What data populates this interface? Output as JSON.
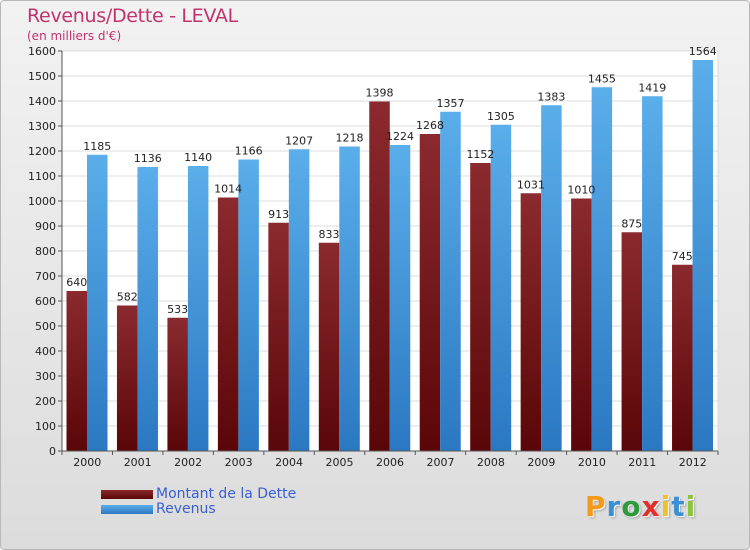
{
  "colors": {
    "debt_top": "#8b2a2e",
    "debt_bottom": "#5a0608",
    "revenue_top": "#5aaeea",
    "revenue_bottom": "#2b78c2",
    "title": "#c0336e",
    "legend_text": "#3a5fd0"
  },
  "logo": {
    "letters": [
      "P",
      "r",
      "o",
      "x",
      "i",
      "t",
      "i"
    ],
    "colors": [
      "#f39a1b",
      "#3a8fd6",
      "#2f9a3c",
      "#e0302a",
      "#f0c22a",
      "#3a8fd6",
      "#8bc43f"
    ]
  },
  "chart_data": {
    "type": "bar",
    "title": "Revenus/Dette - LEVAL",
    "subtitle": "(en milliers d'€)",
    "categories": [
      "2000",
      "2001",
      "2002",
      "2003",
      "2004",
      "2005",
      "2006",
      "2007",
      "2008",
      "2009",
      "2010",
      "2011",
      "2012"
    ],
    "series": [
      {
        "name": "Montant de la Dette",
        "values": [
          640,
          582,
          533,
          1014,
          913,
          833,
          1398,
          1268,
          1152,
          1031,
          1010,
          875,
          745
        ],
        "labels": [
          "640",
          "582",
          "533",
          "1014",
          "913",
          "833",
          "1398",
          "1268",
          "1152",
          "1031",
          "1010",
          "875",
          "745"
        ]
      },
      {
        "name": "Revenus",
        "values": [
          1185,
          1136,
          1140,
          1166,
          1207,
          1218,
          1224,
          1357,
          1305,
          1383,
          1455,
          1419,
          1564
        ],
        "labels": [
          "1185",
          "1136",
          "1140",
          "1166",
          "1207",
          "1218",
          "1224",
          "1357",
          "1305",
          "1383",
          "1455",
          "1419",
          "1564"
        ]
      }
    ],
    "ylim": [
      0,
      1600
    ],
    "yticks": [
      "0",
      "100",
      "200",
      "300",
      "400",
      "500",
      "600",
      "700",
      "800",
      "900",
      "1000",
      "1100",
      "1200",
      "1300",
      "1400",
      "1500",
      "1600"
    ],
    "grid": true,
    "legend_position": "bottom-left"
  }
}
